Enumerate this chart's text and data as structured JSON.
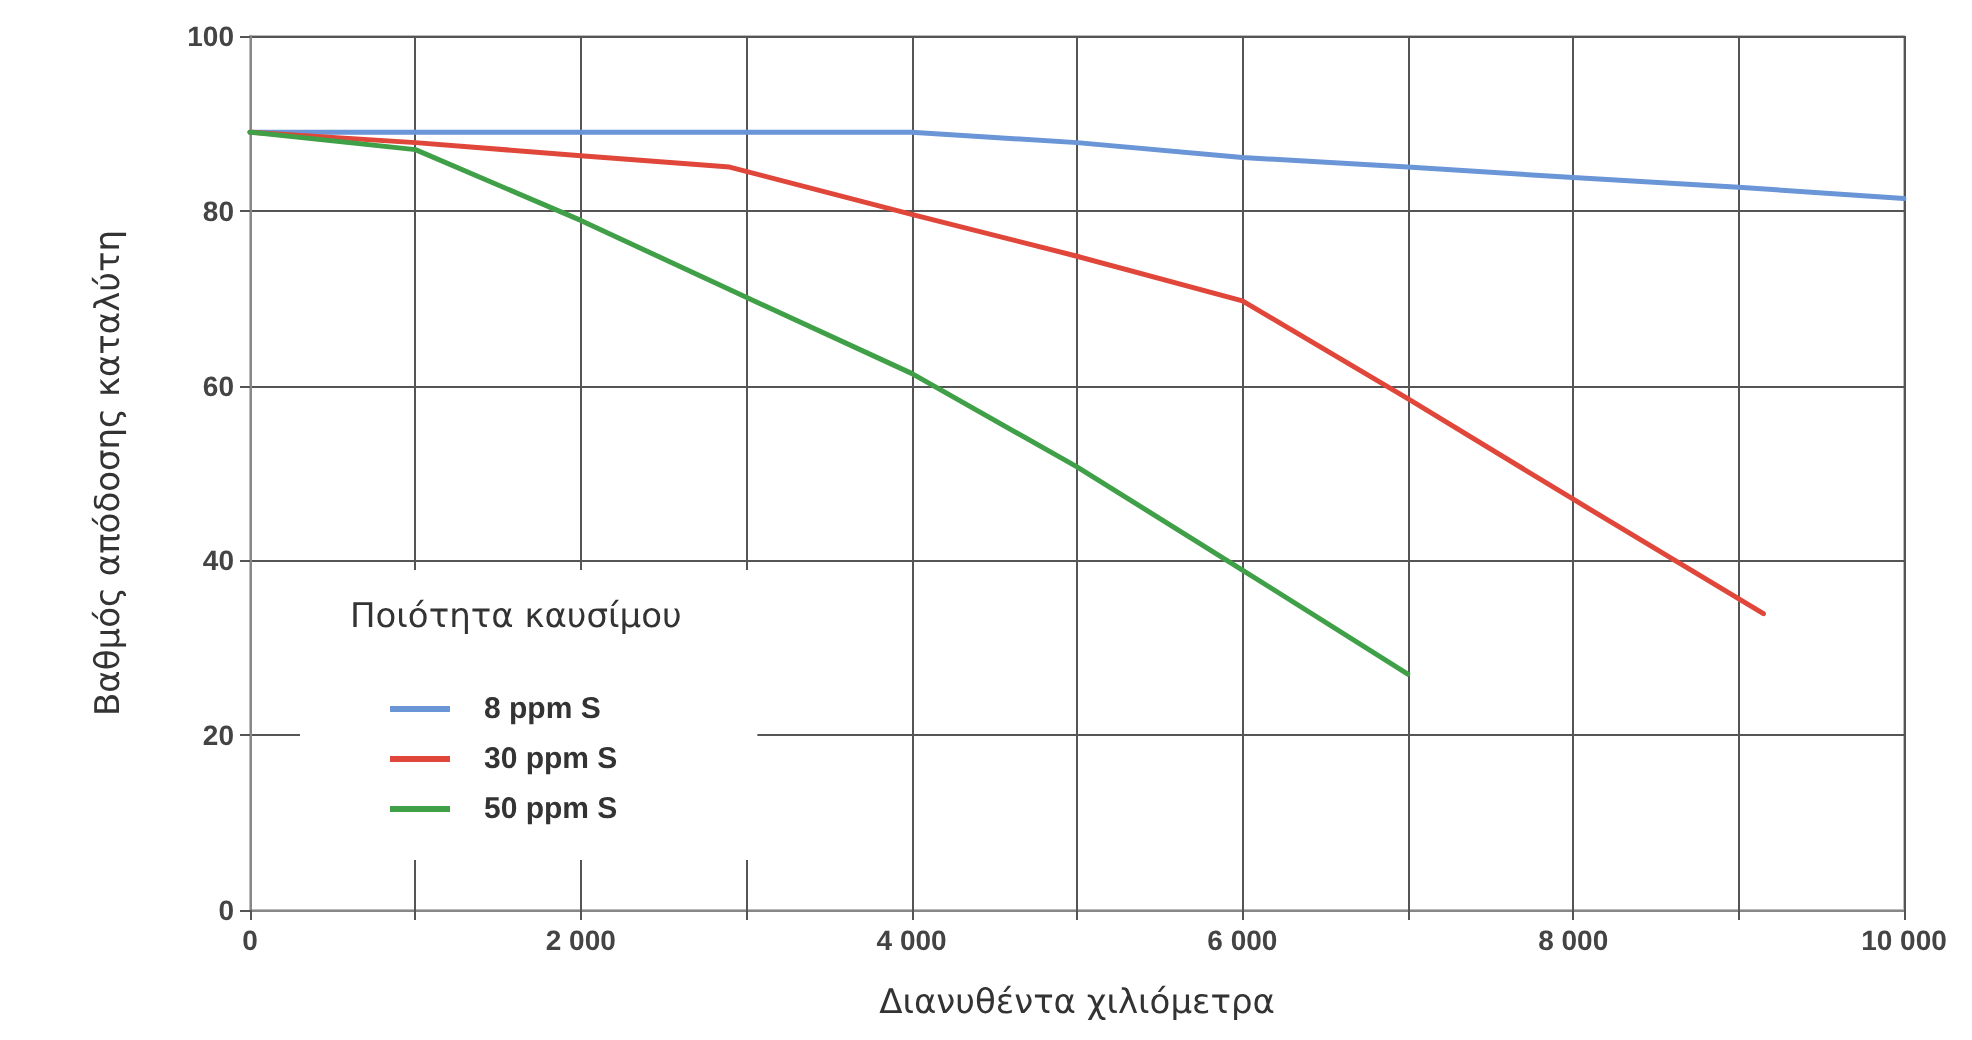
{
  "chart_data": {
    "type": "line",
    "xlabel": "Διανυθέντα χιλιόμετρα",
    "ylabel": "Βαθμός απόδοσης καταλύτη",
    "legend_title": "Ποιότητα καυσίμου",
    "xlim": [
      0,
      10000
    ],
    "ylim": [
      0,
      100
    ],
    "xticks": [
      {
        "value": 0,
        "label": "0"
      },
      {
        "value": 1000,
        "label": null
      },
      {
        "value": 2000,
        "label": "2 000"
      },
      {
        "value": 3000,
        "label": null
      },
      {
        "value": 4000,
        "label": "4 000"
      },
      {
        "value": 5000,
        "label": null
      },
      {
        "value": 6000,
        "label": "6 000"
      },
      {
        "value": 7000,
        "label": null
      },
      {
        "value": 8000,
        "label": "8 000"
      },
      {
        "value": 9000,
        "label": null
      },
      {
        "value": 10000,
        "label": "10 000"
      }
    ],
    "yticks": [
      0,
      20,
      40,
      60,
      80,
      100
    ],
    "grid": true,
    "legend": "bottom left",
    "marker": "none",
    "line_style": "solid",
    "series": [
      {
        "name": "8 ppm S",
        "color": "#6a95d6",
        "x": [
          0,
          1000,
          2000,
          3000,
          4000,
          5000,
          6000,
          7000,
          8000,
          9000,
          10000
        ],
        "values": [
          89,
          89,
          89,
          89,
          89,
          87.8,
          86.1,
          85,
          83.8,
          82.7,
          81.4
        ]
      },
      {
        "name": "30 ppm S",
        "color": "#e0473a",
        "x": [
          0,
          1000,
          2000,
          2900,
          4000,
          5000,
          6000,
          7000,
          8000,
          9150
        ],
        "values": [
          89,
          87.8,
          86.3,
          85,
          79.6,
          74.8,
          69.7,
          58.5,
          47,
          33.9
        ]
      },
      {
        "name": "50 ppm S",
        "color": "#3fa048",
        "x": [
          0,
          1000,
          2000,
          3000,
          4000,
          5000,
          6000,
          7000
        ],
        "values": [
          89,
          87,
          78.9,
          70.1,
          61.4,
          50.7,
          38.9,
          27
        ]
      }
    ]
  }
}
